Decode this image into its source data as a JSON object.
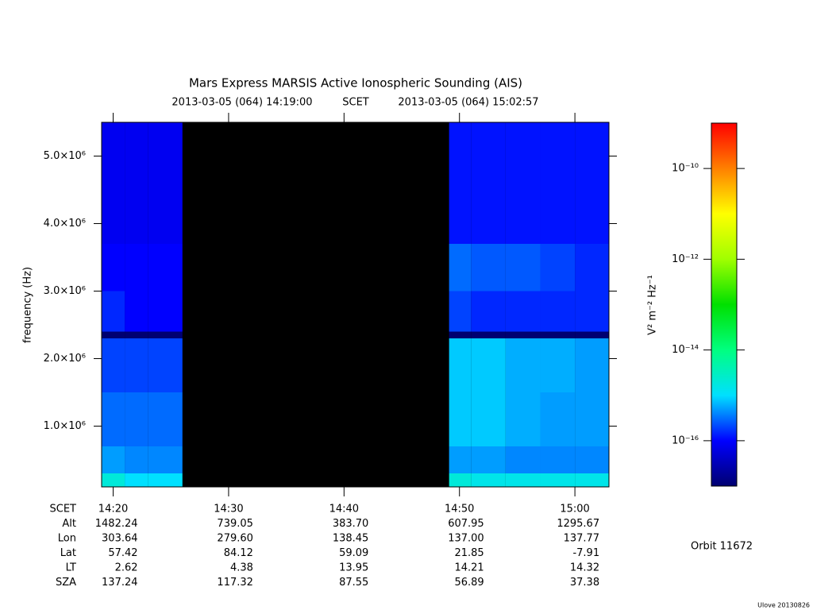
{
  "chart_data": {
    "type": "spectrogram",
    "title": "Mars Express MARSIS Active Ionospheric Sounding (AIS)",
    "subtitle": {
      "start": "2013-03-05 (064) 14:19:00",
      "scale": "SCET",
      "end": "2013-03-05 (064) 15:02:57"
    },
    "y_label": "frequency (Hz)",
    "xlim": [
      859,
      902.95
    ],
    "xticks": [
      {
        "value": 860,
        "label": "14:20"
      },
      {
        "value": 870,
        "label": "14:30"
      },
      {
        "value": 880,
        "label": "14:40"
      },
      {
        "value": 890,
        "label": "14:50"
      },
      {
        "value": 900,
        "label": "15:00"
      }
    ],
    "ylim": [
      100000,
      5500000
    ],
    "yticks": [
      {
        "value": 1000000,
        "label": "1.0×10⁶"
      },
      {
        "value": 2000000,
        "label": "2.0×10⁶"
      },
      {
        "value": 3000000,
        "label": "3.0×10⁶"
      },
      {
        "value": 4000000,
        "label": "4.0×10⁶"
      },
      {
        "value": 5000000,
        "label": "5.0×10⁶"
      }
    ],
    "x_edges": [
      859,
      861,
      863,
      866,
      889.1,
      891,
      894,
      897,
      900,
      902.95
    ],
    "y_edges": [
      100000,
      300000,
      700000,
      1500000,
      2300000,
      2400000,
      3000000,
      3700000,
      5500000
    ],
    "values": [
      [
        2e-15,
        1e-15,
        1e-15,
        null,
        2e-15,
        1.5e-15,
        1.5e-15,
        1.5e-15,
        1.5e-15
      ],
      [
        5e-16,
        4e-16,
        4e-16,
        null,
        5e-16,
        5e-16,
        4e-16,
        4e-16,
        4e-16
      ],
      [
        3e-16,
        3e-16,
        3e-16,
        null,
        8e-16,
        8e-16,
        6e-16,
        5e-16,
        5e-16
      ],
      [
        2e-16,
        2e-16,
        2e-16,
        null,
        8e-16,
        8e-16,
        6e-16,
        6e-16,
        5e-16
      ],
      [
        1e-17,
        1e-17,
        1e-17,
        null,
        1e-17,
        1e-17,
        1e-17,
        1e-17,
        1e-17
      ],
      [
        1.5e-16,
        1e-16,
        1e-16,
        null,
        2e-16,
        1.5e-16,
        1.5e-16,
        1.5e-16,
        1.5e-16
      ],
      [
        1e-16,
        1e-16,
        1e-16,
        null,
        3e-16,
        2.5e-16,
        2.5e-16,
        2e-16,
        1.5e-16
      ],
      [
        8e-17,
        8e-17,
        8e-17,
        null,
        1.2e-16,
        1.2e-16,
        1.2e-16,
        1.2e-16,
        1.2e-16
      ]
    ],
    "colorbar": {
      "label": "V² m⁻² Hz⁻¹",
      "scale": "log",
      "clim": [
        1e-17,
        1e-09
      ],
      "ticks": [
        {
          "value": 1e-10,
          "label": "10⁻¹⁰"
        },
        {
          "value": 1e-12,
          "label": "10⁻¹²"
        },
        {
          "value": 1e-14,
          "label": "10⁻¹⁴"
        },
        {
          "value": 1e-16,
          "label": "10⁻¹⁶"
        }
      ],
      "colormap": [
        "#000070",
        "#0000ff",
        "#00e0ff",
        "#00ff80",
        "#00e000",
        "#a0ff00",
        "#ffff00",
        "#ff8000",
        "#ff0000"
      ]
    },
    "ephemeris": {
      "labels": [
        "SCET",
        "Alt",
        "Lon",
        "Lat",
        "LT",
        "SZA"
      ],
      "rows": [
        [
          "1482.24",
          "739.05",
          "383.70",
          "607.95",
          "1295.67"
        ],
        [
          "303.64",
          "279.60",
          "138.45",
          "137.00",
          "137.77"
        ],
        [
          "57.42",
          "84.12",
          "59.09",
          "21.85",
          "-7.91"
        ],
        [
          "2.62",
          "4.38",
          "13.95",
          "14.21",
          "14.32"
        ],
        [
          "137.24",
          "117.32",
          "87.55",
          "56.89",
          "37.38"
        ]
      ]
    },
    "orbit": "Orbit 11672",
    "footer": "Ulove 20130826"
  }
}
